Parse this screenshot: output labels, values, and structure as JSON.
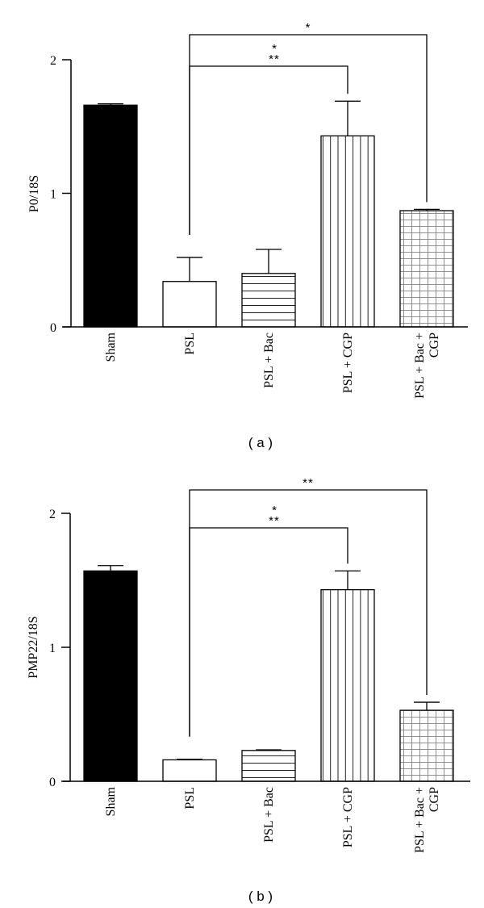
{
  "chart_data": [
    {
      "type": "bar",
      "panel": "a",
      "caption": "( a )",
      "ylabel": "P0/18S",
      "xlabel": "",
      "ylim": [
        0,
        2
      ],
      "yticks": [
        0,
        1,
        2
      ],
      "grid": false,
      "categories": [
        "Sham",
        "PSL",
        "PSL + Bac",
        "PSL + CGP",
        "PSL + Bac + CGP"
      ],
      "category_lines": [
        [
          "Sham"
        ],
        [
          "PSL"
        ],
        [
          "PSL + Bac"
        ],
        [
          "PSL + CGP"
        ],
        [
          "PSL + Bac +",
          "CGP"
        ]
      ],
      "values": [
        1.66,
        0.34,
        0.4,
        1.43,
        0.87
      ],
      "error": [
        0.01,
        0.18,
        0.18,
        0.26,
        0.01
      ],
      "patterns": [
        "solid-black",
        "white",
        "horizontal-lines",
        "vertical-lines",
        "grid"
      ],
      "significance": [
        {
          "from": "PSL",
          "to": "PSL + CGP",
          "label_top": "*",
          "label_bottom": "**"
        },
        {
          "from": "PSL",
          "to": "PSL + Bac + CGP",
          "label_top": "",
          "label_bottom": "*"
        }
      ]
    },
    {
      "type": "bar",
      "panel": "b",
      "caption": "( b )",
      "ylabel": "PMP22/18S",
      "xlabel": "",
      "ylim": [
        0,
        2
      ],
      "yticks": [
        0,
        1,
        2
      ],
      "grid": false,
      "categories": [
        "Sham",
        "PSL",
        "PSL + Bac",
        "PSL + CGP",
        "PSL + Bac + CGP"
      ],
      "category_lines": [
        [
          "Sham"
        ],
        [
          "PSL"
        ],
        [
          "PSL + Bac"
        ],
        [
          "PSL + CGP"
        ],
        [
          "PSL + Bac +",
          "CGP"
        ]
      ],
      "values": [
        1.57,
        0.16,
        0.23,
        1.43,
        0.53
      ],
      "error": [
        0.04,
        0.005,
        0.005,
        0.14,
        0.06
      ],
      "patterns": [
        "solid-black",
        "white",
        "horizontal-lines",
        "vertical-lines",
        "grid"
      ],
      "significance": [
        {
          "from": "PSL",
          "to": "PSL + CGP",
          "label_top": "*",
          "label_bottom": "**"
        },
        {
          "from": "PSL",
          "to": "PSL + Bac + CGP",
          "label_top": "",
          "label_bottom": "**"
        }
      ]
    }
  ]
}
